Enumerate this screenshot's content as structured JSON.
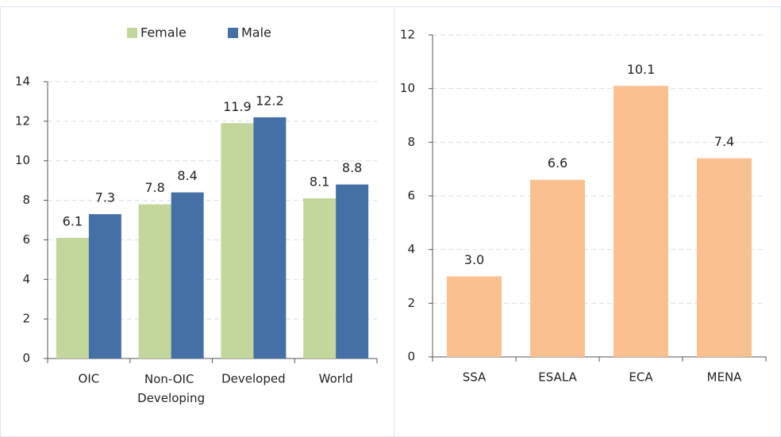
{
  "chart_data": [
    {
      "type": "bar",
      "categories": [
        "OIC",
        "Non-OIC Developing",
        "Developed",
        "World"
      ],
      "series": [
        {
          "name": "Female",
          "color": "#c3d69b",
          "values": [
            6.1,
            7.8,
            11.9,
            8.1
          ]
        },
        {
          "name": "Male",
          "color": "#4470a6",
          "values": [
            7.3,
            8.4,
            12.2,
            8.8
          ]
        }
      ],
      "ylim": [
        0,
        14
      ],
      "yticks": [
        0,
        2,
        4,
        6,
        8,
        10,
        12,
        14
      ],
      "grid": true,
      "legend": "top"
    },
    {
      "type": "bar",
      "categories": [
        "SSA",
        "ESALA",
        "ECA",
        "MENA"
      ],
      "values": [
        3,
        6.6,
        10.1,
        7.4
      ],
      "value_labels": [
        "3.0",
        "6.6",
        "10.1",
        "7.4"
      ],
      "color": "#fac090",
      "ylim": [
        0,
        12
      ],
      "yticks": [
        0,
        2,
        4,
        6,
        8,
        10,
        12
      ],
      "grid": true
    }
  ]
}
